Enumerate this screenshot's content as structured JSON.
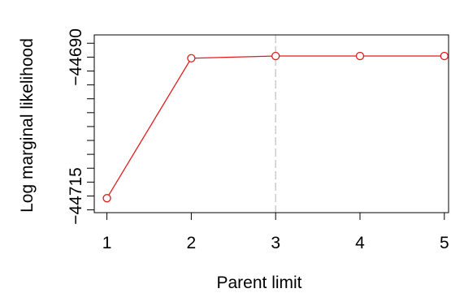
{
  "chart_data": {
    "type": "line",
    "title": "",
    "xlabel": "Parent limit",
    "ylabel": "Log marginal likelihood",
    "x": [
      1,
      2,
      3,
      4,
      5
    ],
    "series": [
      {
        "values": [
          -44715.4,
          -44690.2,
          -44689.8,
          -44689.8,
          -44689.8
        ]
      }
    ],
    "xticks": [
      "1",
      "2",
      "3",
      "4",
      "5"
    ],
    "yticks_labeled": [
      {
        "value": -44690,
        "label": "−44690"
      },
      {
        "value": -44715,
        "label": "−44715"
      }
    ],
    "ytick_values": [
      -44717.5,
      -44715,
      -44712.5,
      -44710,
      -44707.5,
      -44705,
      -44702.5,
      -44700,
      -44697.5,
      -44695,
      -44692.5,
      -44690,
      -44687.5
    ],
    "ylim": [
      -44718,
      -44686
    ],
    "xlim": [
      0.85,
      5.05
    ],
    "vline_x": 3,
    "line_color": "#e31a1c",
    "vline_color": "#c8c8c8",
    "grid": false,
    "legend": "none"
  }
}
